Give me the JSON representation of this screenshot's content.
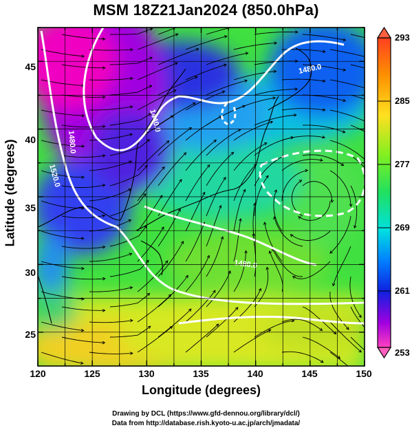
{
  "title": "MSM 18Z21Jan2024 (850.0hPa)",
  "x_axis_label": "Longitude (degrees)",
  "y_axis_label": "Latitude  (degrees)",
  "x_ticks": [
    "120",
    "125",
    "130",
    "135",
    "140",
    "145",
    "150"
  ],
  "y_ticks": [
    "25",
    "30",
    "35",
    "40",
    "45"
  ],
  "colorbar_ticks": [
    "293",
    "285",
    "277",
    "269",
    "261",
    "253"
  ],
  "contour_labels": [
    "1480.0",
    "1440.0",
    "1480.0",
    "1520.0",
    "1480.0"
  ],
  "credits": {
    "line1": "Drawing by DCL (https://www.gfd-dennou.org/library/dcl/)",
    "line2": "Data from http://database.rish.kyoto-u.ac.jp/arch/jmadata/"
  },
  "chart_data": {
    "type": "heatmap",
    "title": "MSM 18Z21Jan2024 (850.0hPa)",
    "xlabel": "Longitude (degrees)",
    "ylabel": "Latitude  (degrees)",
    "xlim": [
      120,
      150
    ],
    "ylim": [
      22.5,
      47.5
    ],
    "colorbar": {
      "min": 253,
      "max": 293,
      "ticks": [
        293,
        285,
        277,
        269,
        261,
        253
      ]
    },
    "contour_levels_labeled": [
      1440.0,
      1480.0,
      1520.0
    ],
    "overlays": [
      "temperature shading",
      "geopotential height contours (white)",
      "wind streamlines (black)",
      "coastlines"
    ],
    "grid": true
  },
  "colors": {
    "cold_magenta": "#e000d0",
    "blue": "#1a40ff",
    "cyan": "#00d0e0",
    "green": "#20e020",
    "yellow": "#e8f020",
    "orange": "#ff8000",
    "contour": "#ffffff",
    "streamline": "#000000"
  }
}
